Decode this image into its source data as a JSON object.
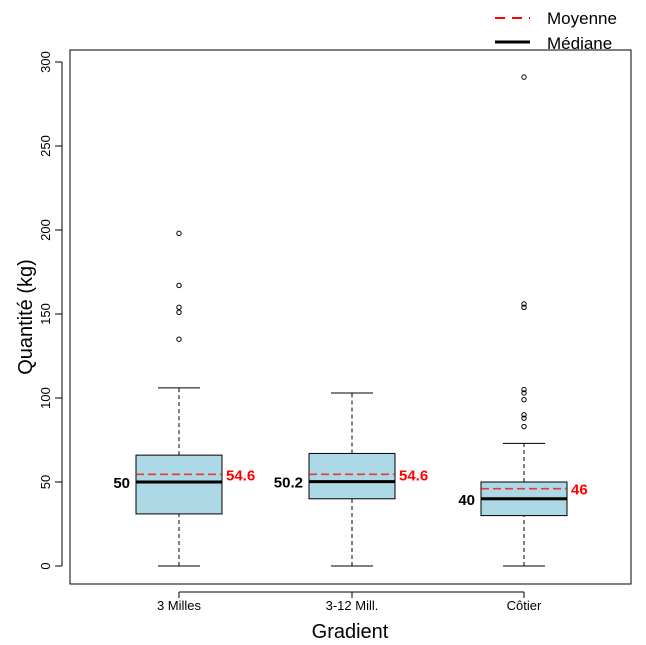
{
  "chart_data": {
    "type": "box",
    "xlabel": "Gradient",
    "ylabel": "Quantité (kg)",
    "ylim": [
      0,
      300
    ],
    "yticks": [
      "0",
      "50",
      "100",
      "150",
      "200",
      "250",
      "300"
    ],
    "colors": {
      "box_fill": "#add8e6",
      "mean": "#ff0000",
      "median": "#000000"
    },
    "legend": {
      "position": "top-right",
      "entries": [
        {
          "label": "Moyenne",
          "style": "dashed",
          "color": "#ff0000"
        },
        {
          "label": "Médiane",
          "style": "solid",
          "color": "#000000"
        }
      ]
    },
    "groups": [
      {
        "label": "3 Milles",
        "whisker_low": 0,
        "q1": 31,
        "median": 50,
        "q3": 66,
        "whisker_high": 106,
        "mean": 54.6,
        "outliers": [
          135,
          151,
          154,
          167,
          198
        ],
        "median_label": "50",
        "mean_label": "54.6"
      },
      {
        "label": "3-12 Mill.",
        "whisker_low": 0,
        "q1": 40,
        "median": 50.2,
        "q3": 67,
        "whisker_high": 103,
        "mean": 54.6,
        "outliers": [],
        "median_label": "50.2",
        "mean_label": "54.6"
      },
      {
        "label": "Côtier",
        "whisker_low": 0,
        "q1": 30,
        "median": 40,
        "q3": 50,
        "whisker_high": 73,
        "mean": 46,
        "outliers": [
          83,
          88,
          90,
          99,
          103,
          105,
          154,
          156,
          291
        ],
        "median_label": "40",
        "mean_label": "46"
      }
    ]
  }
}
